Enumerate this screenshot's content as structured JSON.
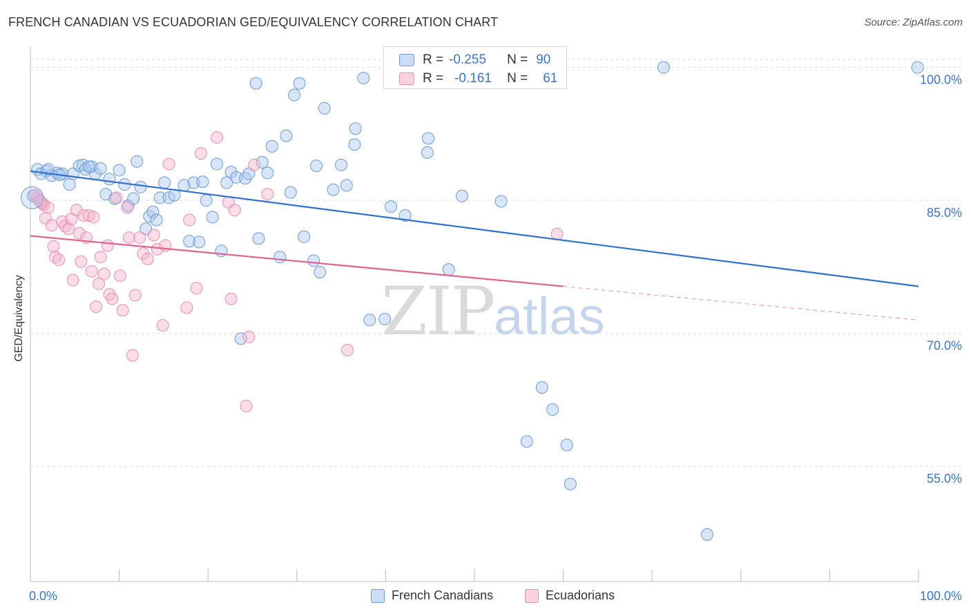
{
  "title": "FRENCH CANADIAN VS ECUADORIAN GED/EQUIVALENCY CORRELATION CHART",
  "source": "Source: ZipAtlas.com",
  "watermark": {
    "zip": "ZIP",
    "atlas": "atlas"
  },
  "stats": {
    "rows": [
      {
        "r_label": "R =",
        "r_value": "-0.255",
        "n_label": "N =",
        "n_value": "90"
      },
      {
        "r_label": "R =",
        "r_value": "-0.161",
        "n_label": "N =",
        "n_value": "61"
      }
    ]
  },
  "legend": [
    {
      "label": "French Canadians"
    },
    {
      "label": "Ecuadorians"
    }
  ],
  "colors": {
    "blue_fill": "rgba(170,200,240,0.45)",
    "blue_stroke": "#6a9ad8",
    "blue_line": "#2f6fd0",
    "pink_fill": "rgba(245,180,205,0.45)",
    "pink_stroke": "#e890b0",
    "pink_line": "#e0628e",
    "axis_text": "#3a74c9",
    "grid": "#dddddd"
  },
  "chart_data": {
    "type": "scatter",
    "title": "FRENCH CANADIAN VS ECUADORIAN GED/EQUIVALENCY CORRELATION CHART",
    "xlabel": "",
    "ylabel": "GED/Equivalency",
    "xlim": [
      0,
      100
    ],
    "ylim": [
      42,
      102
    ],
    "x_tick_labels": [
      "0.0%",
      "100.0%"
    ],
    "y_ticks": [
      55,
      70,
      85,
      100
    ],
    "y_tick_labels": [
      "55.0%",
      "70.0%",
      "85.0%",
      "100.0%"
    ],
    "grid": true,
    "legend_position": "bottom",
    "series": [
      {
        "name": "French Canadians",
        "R": -0.255,
        "N": 90,
        "trend": {
          "x0": 0,
          "y0": 88.3,
          "x1": 100,
          "y1": 75.3
        },
        "points": [
          [
            0.3,
            85.5
          ],
          [
            0.8,
            88.5
          ],
          [
            1.2,
            88.0
          ],
          [
            1.8,
            88.3
          ],
          [
            2.4,
            87.8
          ],
          [
            3.0,
            88.1
          ],
          [
            3.6,
            88.0
          ],
          [
            4.4,
            86.8
          ],
          [
            4.8,
            88.0
          ],
          [
            5.5,
            88.9
          ],
          [
            5.9,
            89.0
          ],
          [
            6.2,
            88.5
          ],
          [
            6.9,
            88.8
          ],
          [
            7.3,
            88.0
          ],
          [
            7.9,
            88.6
          ],
          [
            8.5,
            85.7
          ],
          [
            8.9,
            87.4
          ],
          [
            9.5,
            85.2
          ],
          [
            10.0,
            88.4
          ],
          [
            10.6,
            86.8
          ],
          [
            11.0,
            84.4
          ],
          [
            11.6,
            85.2
          ],
          [
            12.0,
            89.4
          ],
          [
            12.4,
            86.5
          ],
          [
            13.0,
            81.8
          ],
          [
            13.4,
            83.2
          ],
          [
            13.8,
            83.7
          ],
          [
            14.2,
            82.8
          ],
          [
            14.6,
            85.3
          ],
          [
            15.1,
            87.0
          ],
          [
            15.6,
            85.3
          ],
          [
            16.2,
            85.6
          ],
          [
            17.3,
            86.7
          ],
          [
            17.9,
            80.4
          ],
          [
            18.4,
            87.0
          ],
          [
            19.0,
            80.3
          ],
          [
            19.4,
            87.1
          ],
          [
            19.8,
            85.0
          ],
          [
            20.5,
            83.1
          ],
          [
            21.0,
            89.1
          ],
          [
            21.5,
            79.3
          ],
          [
            22.1,
            87.0
          ],
          [
            22.6,
            88.2
          ],
          [
            23.2,
            87.6
          ],
          [
            23.7,
            69.4
          ],
          [
            24.2,
            87.5
          ],
          [
            24.6,
            88.0
          ],
          [
            25.4,
            98.2
          ],
          [
            25.7,
            80.7
          ],
          [
            26.1,
            89.3
          ],
          [
            26.7,
            88.1
          ],
          [
            27.2,
            91.1
          ],
          [
            28.1,
            78.6
          ],
          [
            28.8,
            92.3
          ],
          [
            29.3,
            85.9
          ],
          [
            29.7,
            96.9
          ],
          [
            30.3,
            98.2
          ],
          [
            30.8,
            80.9
          ],
          [
            31.9,
            78.2
          ],
          [
            32.2,
            88.9
          ],
          [
            32.6,
            76.9
          ],
          [
            33.1,
            95.4
          ],
          [
            34.1,
            86.2
          ],
          [
            35.0,
            89.0
          ],
          [
            35.6,
            86.7
          ],
          [
            36.5,
            91.3
          ],
          [
            36.6,
            93.1
          ],
          [
            37.5,
            98.8
          ],
          [
            38.2,
            71.5
          ],
          [
            39.9,
            71.6
          ],
          [
            40.6,
            84.3
          ],
          [
            42.2,
            83.3
          ],
          [
            44.7,
            90.4
          ],
          [
            44.8,
            92.0
          ],
          [
            47.1,
            77.2
          ],
          [
            48.6,
            85.5
          ],
          [
            53.0,
            84.9
          ],
          [
            55.9,
            57.8
          ],
          [
            57.6,
            63.9
          ],
          [
            58.8,
            61.4
          ],
          [
            60.4,
            57.4
          ],
          [
            60.8,
            53.0
          ],
          [
            71.3,
            100.0
          ],
          [
            76.2,
            47.3
          ],
          [
            99.9,
            100.0
          ],
          [
            47.2,
            100.0
          ],
          [
            48.8,
            100.0
          ],
          [
            2.0,
            88.5
          ],
          [
            3.3,
            87.9
          ],
          [
            6.6,
            88.8
          ]
        ]
      },
      {
        "name": "Ecuadorians",
        "R": -0.161,
        "N": 61,
        "trend": {
          "x0": 0,
          "y0": 81.0,
          "x1": 60,
          "y1": 75.3,
          "dash_to": {
            "x": 100,
            "y": 71.5
          }
        },
        "points": [
          [
            0.5,
            85.6
          ],
          [
            1.0,
            85.0
          ],
          [
            1.5,
            84.5
          ],
          [
            1.7,
            83.0
          ],
          [
            2.0,
            84.2
          ],
          [
            2.4,
            82.2
          ],
          [
            2.6,
            79.8
          ],
          [
            2.8,
            78.6
          ],
          [
            3.2,
            78.3
          ],
          [
            3.6,
            82.6
          ],
          [
            3.9,
            82.1
          ],
          [
            4.3,
            81.8
          ],
          [
            4.6,
            82.9
          ],
          [
            4.8,
            76.0
          ],
          [
            5.2,
            83.9
          ],
          [
            5.5,
            81.3
          ],
          [
            5.7,
            78.1
          ],
          [
            6.0,
            83.3
          ],
          [
            6.3,
            80.8
          ],
          [
            6.6,
            83.3
          ],
          [
            6.9,
            77.0
          ],
          [
            7.1,
            83.1
          ],
          [
            7.4,
            73.0
          ],
          [
            7.7,
            75.6
          ],
          [
            7.9,
            78.6
          ],
          [
            8.3,
            76.7
          ],
          [
            8.7,
            79.9
          ],
          [
            8.9,
            74.4
          ],
          [
            9.2,
            73.9
          ],
          [
            9.7,
            85.3
          ],
          [
            10.1,
            76.5
          ],
          [
            10.4,
            72.6
          ],
          [
            10.9,
            84.2
          ],
          [
            11.1,
            80.8
          ],
          [
            11.5,
            67.5
          ],
          [
            11.8,
            74.3
          ],
          [
            12.3,
            80.8
          ],
          [
            12.7,
            79.0
          ],
          [
            13.2,
            78.4
          ],
          [
            13.9,
            81.1
          ],
          [
            14.3,
            79.5
          ],
          [
            14.9,
            70.9
          ],
          [
            15.2,
            79.9
          ],
          [
            15.6,
            89.1
          ],
          [
            17.6,
            72.9
          ],
          [
            17.9,
            82.8
          ],
          [
            18.7,
            75.1
          ],
          [
            19.2,
            90.3
          ],
          [
            21.0,
            92.1
          ],
          [
            22.3,
            84.8
          ],
          [
            22.6,
            73.9
          ],
          [
            23.0,
            83.9
          ],
          [
            24.3,
            61.8
          ],
          [
            24.6,
            69.6
          ],
          [
            25.2,
            89.0
          ],
          [
            26.7,
            85.7
          ],
          [
            35.7,
            68.1
          ],
          [
            59.3,
            81.2
          ],
          [
            0.8,
            85.3
          ],
          [
            1.3,
            84.7
          ],
          [
            1.1,
            84.9
          ]
        ]
      }
    ]
  }
}
